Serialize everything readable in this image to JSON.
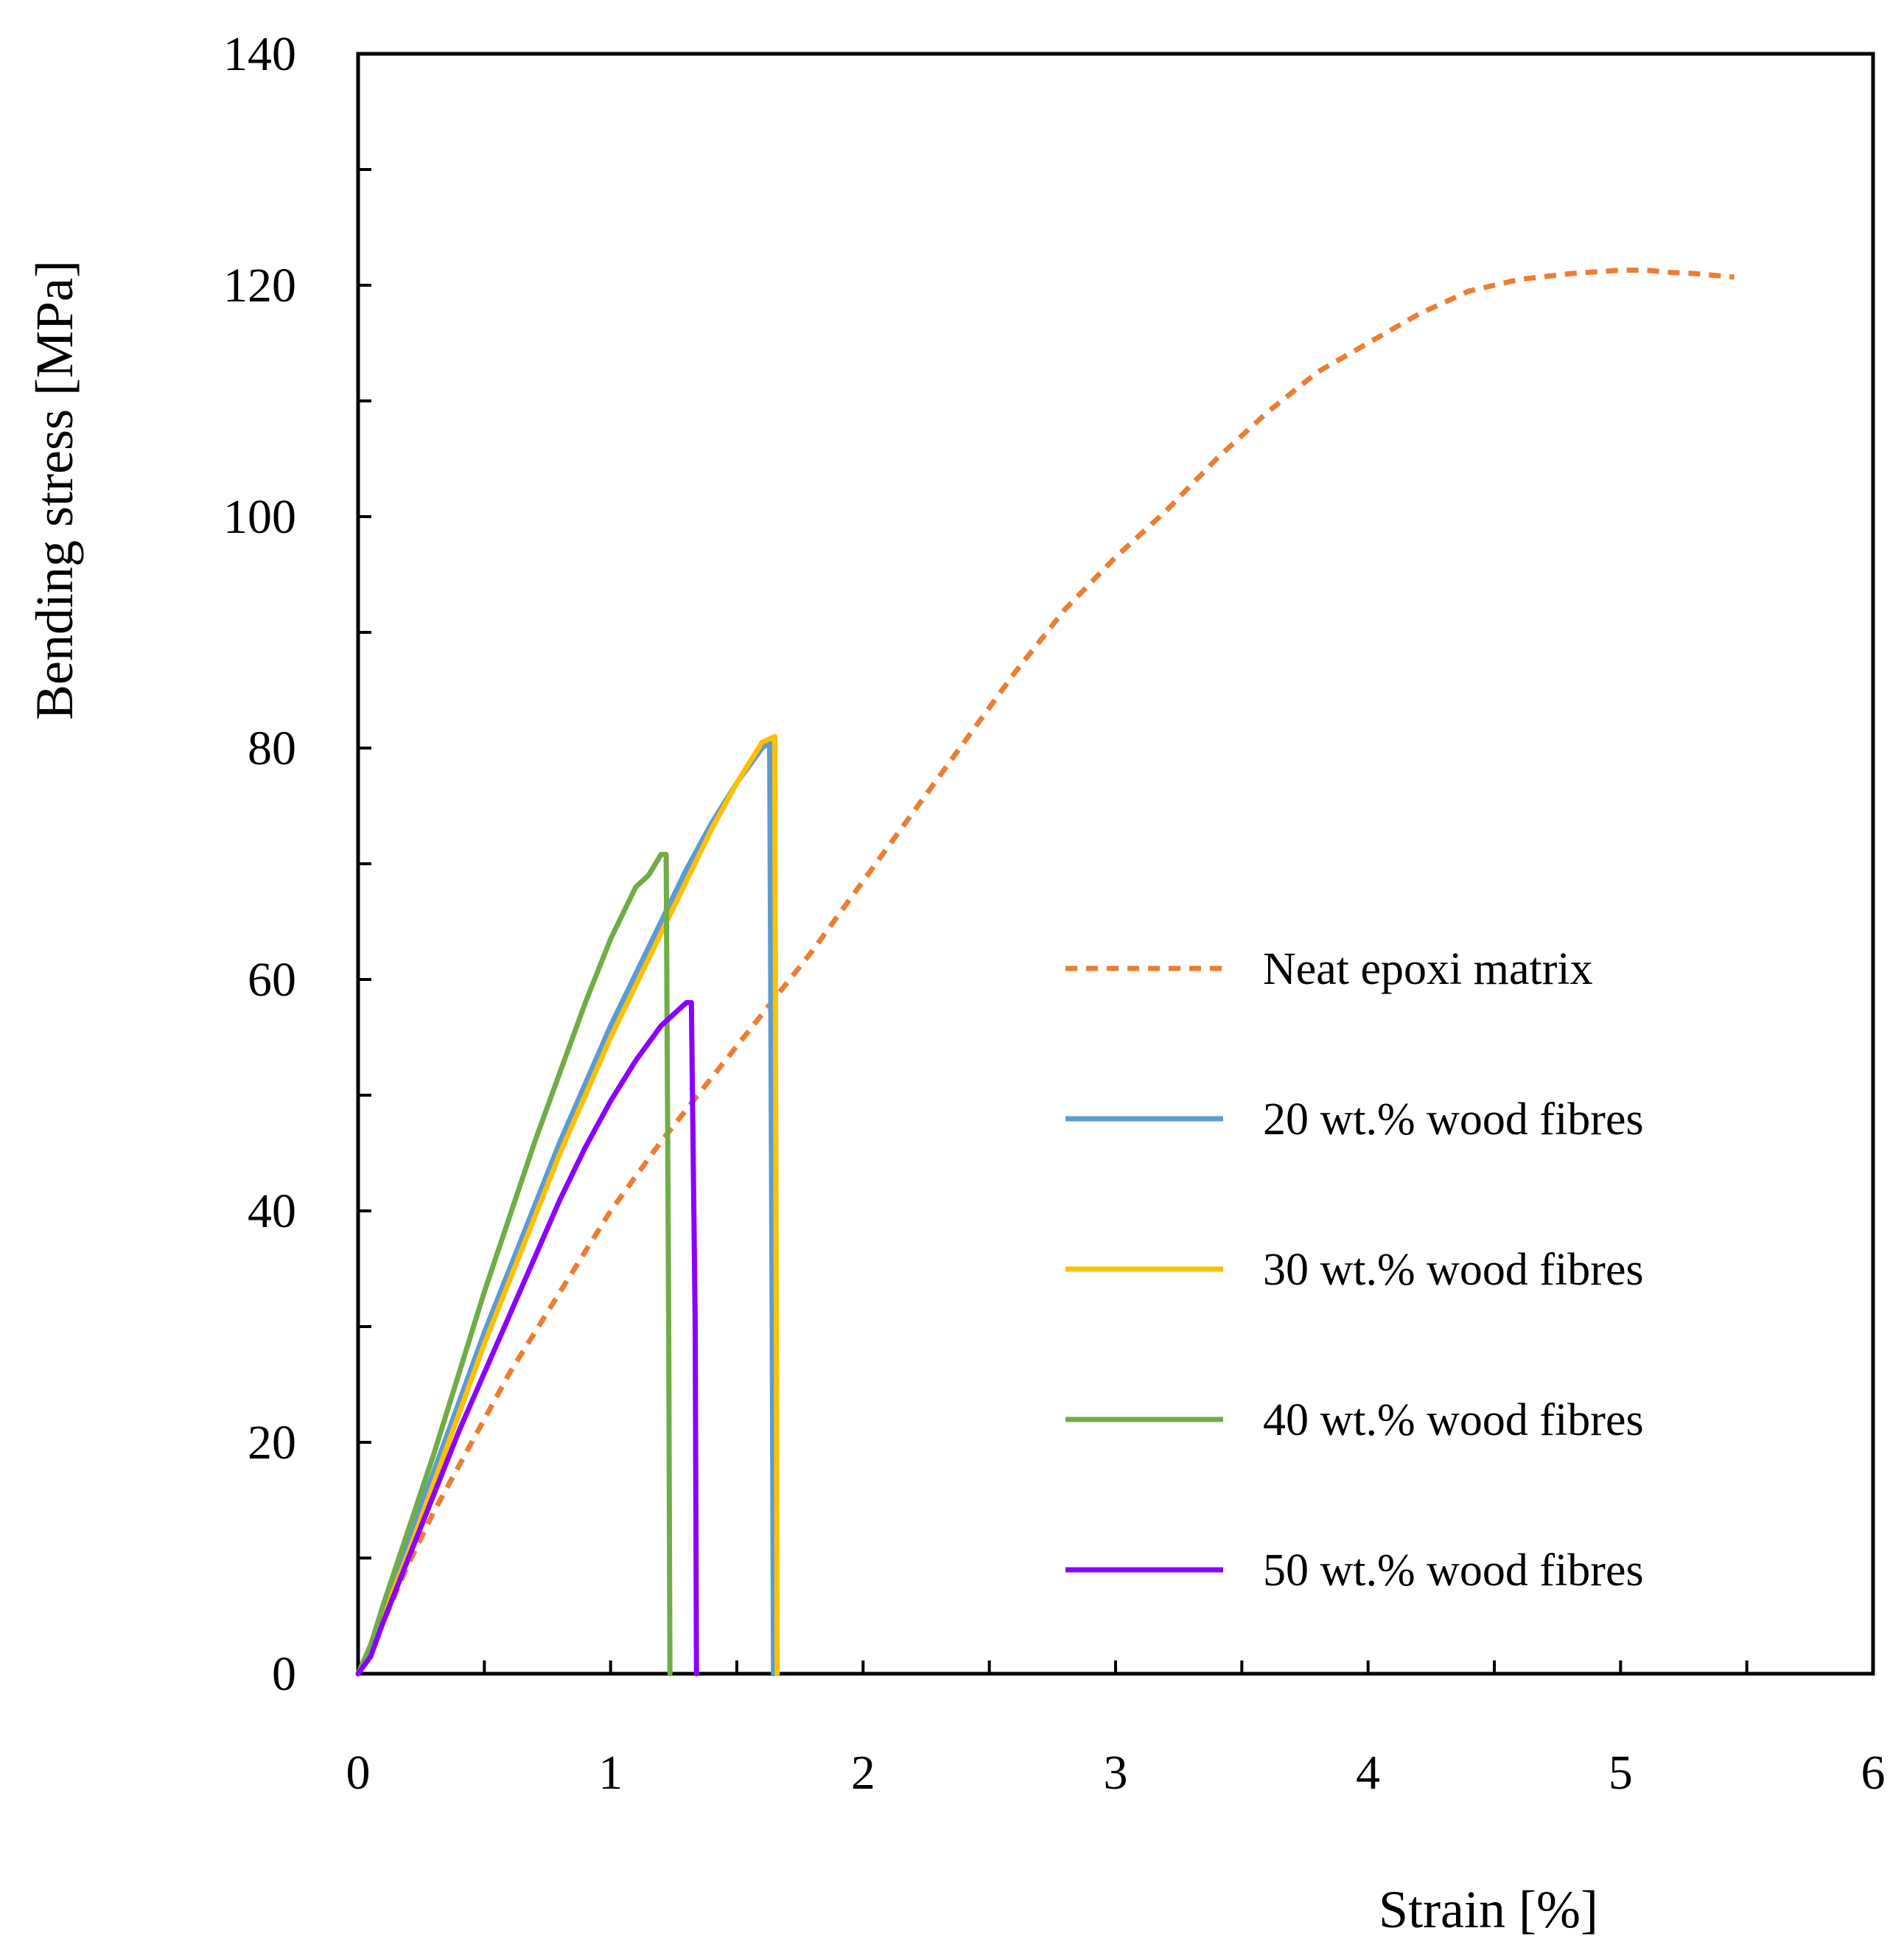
{
  "chart_data": {
    "type": "line",
    "title": "",
    "xlabel": "Strain [%]",
    "ylabel": "Bending stress [MPa]",
    "xlim": [
      0,
      6
    ],
    "ylim": [
      0,
      140
    ],
    "xticks": [
      0,
      1,
      2,
      3,
      4,
      5,
      6
    ],
    "xtick_labels": [
      "0",
      "1",
      "2",
      "3",
      "4",
      "5",
      "6"
    ],
    "yticks": [
      0,
      20,
      40,
      60,
      80,
      100,
      120,
      140
    ],
    "ytick_labels": [
      "0",
      "20",
      "40",
      "60",
      "80",
      "100",
      "120",
      "140"
    ],
    "yminor_step": 10,
    "xminor_step": 0.5,
    "grid": false,
    "legend_position": "right-middle",
    "series": [
      {
        "name": "Neat epoxi matrix",
        "color": "#ED7D31",
        "style": "dashed",
        "x": [
          0,
          0.1,
          0.2,
          0.3,
          0.4,
          0.5,
          0.6,
          0.7,
          0.8,
          0.9,
          1.0,
          1.2,
          1.4,
          1.6,
          1.8,
          2.0,
          2.2,
          2.4,
          2.6,
          2.8,
          3.0,
          3.2,
          3.4,
          3.6,
          3.8,
          4.0,
          4.2,
          4.4,
          4.6,
          4.8,
          5.0,
          5.1,
          5.2,
          5.3,
          5.45
        ],
        "y": [
          0,
          4.5,
          9.5,
          14,
          18,
          22,
          26,
          29.5,
          33,
          36.5,
          40,
          46,
          51.5,
          57,
          62.5,
          68.5,
          74.5,
          80.5,
          86.5,
          92,
          96.5,
          100.5,
          105,
          109,
          112.5,
          115,
          117.5,
          119.5,
          120.5,
          121,
          121.3,
          121.3,
          121.1,
          121,
          120.7
        ]
      },
      {
        "name": "20 wt.% wood fibres",
        "color": "#5B9BD5",
        "style": "solid",
        "x": [
          0,
          0.05,
          0.1,
          0.2,
          0.3,
          0.4,
          0.5,
          0.6,
          0.7,
          0.8,
          0.9,
          1.0,
          1.1,
          1.2,
          1.3,
          1.4,
          1.5,
          1.6,
          1.63,
          1.64,
          1.645
        ],
        "y": [
          0,
          2,
          5.5,
          11.5,
          17.5,
          23.5,
          29.5,
          35,
          40.5,
          46,
          51,
          56,
          60.5,
          65,
          69.5,
          73.5,
          77,
          80,
          80.5,
          30,
          0
        ]
      },
      {
        "name": "30 wt.% wood fibres",
        "color": "#FFC000",
        "style": "solid",
        "x": [
          0,
          0.05,
          0.1,
          0.2,
          0.3,
          0.4,
          0.5,
          0.6,
          0.7,
          0.8,
          0.9,
          1.0,
          1.1,
          1.2,
          1.3,
          1.4,
          1.5,
          1.6,
          1.65,
          1.655,
          1.66
        ],
        "y": [
          0,
          2,
          5,
          10.5,
          16.5,
          22.5,
          28.5,
          34,
          39.5,
          45,
          50,
          55,
          59.5,
          64,
          68.5,
          73,
          77,
          80.5,
          81,
          40,
          0
        ]
      },
      {
        "name": "40 wt.% wood fibres",
        "color": "#70AD47",
        "style": "solid",
        "x": [
          0,
          0.05,
          0.1,
          0.2,
          0.3,
          0.4,
          0.5,
          0.6,
          0.7,
          0.8,
          0.9,
          1.0,
          1.1,
          1.15,
          1.2,
          1.22,
          1.23,
          1.235
        ],
        "y": [
          0,
          2.5,
          6,
          12.5,
          19,
          26,
          33,
          39.5,
          46,
          52,
          58,
          63.5,
          68,
          69,
          70.8,
          70.8,
          30,
          0
        ]
      },
      {
        "name": "50 wt.% wood fibres",
        "color": "#8B00FF",
        "style": "solid",
        "x": [
          0,
          0.05,
          0.1,
          0.2,
          0.3,
          0.4,
          0.5,
          0.6,
          0.7,
          0.8,
          0.9,
          1.0,
          1.1,
          1.2,
          1.3,
          1.32,
          1.335,
          1.34
        ],
        "y": [
          0,
          1.5,
          4.5,
          10,
          15.5,
          21,
          26,
          31,
          36,
          41,
          45.5,
          49.5,
          53,
          56,
          58,
          58,
          30,
          0
        ]
      }
    ]
  }
}
